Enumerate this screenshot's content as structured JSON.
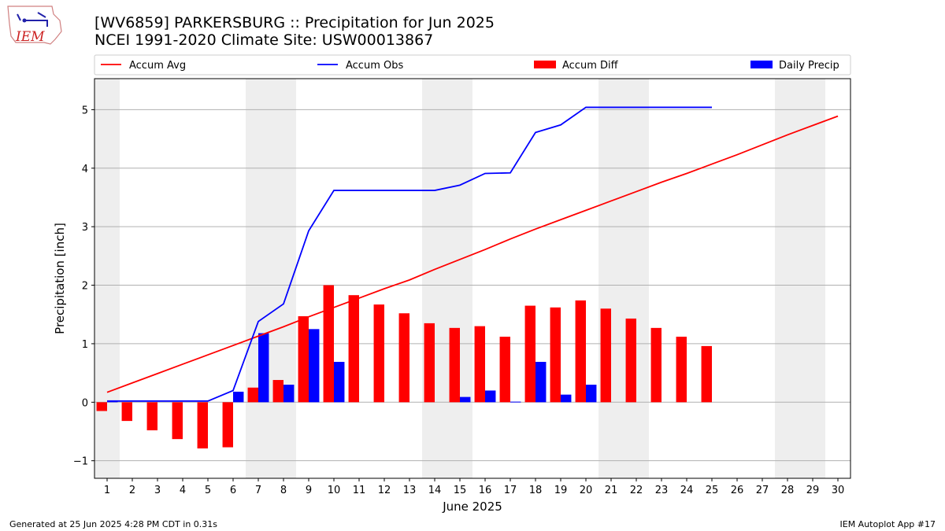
{
  "header": {
    "logo_text": "IEM",
    "title_line1": "[WV6859] PARKERSBURG :: Precipitation for Jun 2025",
    "title_line2": "NCEI 1991-2020 Climate Site: USW00013867"
  },
  "footer": {
    "left": "Generated at 25 Jun 2025 4:28 PM CDT in 0.31s",
    "right": "IEM Autoplot App #17"
  },
  "chart_data": {
    "type": "bar",
    "xlabel": "June 2025",
    "ylabel": "Precipitation [inch]",
    "xlim": [
      0.5,
      30.5
    ],
    "ylim": [
      -1.3,
      5.53
    ],
    "yticks": [
      -1,
      0,
      1,
      2,
      3,
      4,
      5
    ],
    "grid": true,
    "legend_position": "top",
    "weekend_shading": [
      [
        0.5,
        1.5
      ],
      [
        6.5,
        8.5
      ],
      [
        13.5,
        15.5
      ],
      [
        20.5,
        22.5
      ],
      [
        27.5,
        29.5
      ]
    ],
    "days": [
      1,
      2,
      3,
      4,
      5,
      6,
      7,
      8,
      9,
      10,
      11,
      12,
      13,
      14,
      15,
      16,
      17,
      18,
      19,
      20,
      21,
      22,
      23,
      24,
      25,
      26,
      27,
      28,
      29,
      30
    ],
    "series": [
      {
        "name": "Accum Avg",
        "kind": "line",
        "color": "#ff0000",
        "values": [
          0.17,
          0.33,
          0.49,
          0.65,
          0.81,
          0.97,
          1.13,
          1.29,
          1.46,
          1.62,
          1.78,
          1.94,
          2.09,
          2.27,
          2.44,
          2.61,
          2.79,
          2.96,
          3.12,
          3.28,
          3.44,
          3.6,
          3.76,
          3.91,
          4.07,
          4.23,
          4.4,
          4.57,
          4.73,
          4.89
        ]
      },
      {
        "name": "Accum Obs",
        "kind": "line",
        "color": "#0000ff",
        "values": [
          0.02,
          0.02,
          0.02,
          0.02,
          0.02,
          0.2,
          1.38,
          1.68,
          2.93,
          3.62,
          3.62,
          3.62,
          3.62,
          3.62,
          3.71,
          3.91,
          3.92,
          4.61,
          4.74,
          5.04,
          5.04,
          5.04,
          5.04,
          5.04,
          5.04
        ]
      },
      {
        "name": "Accum Diff",
        "kind": "bar",
        "color": "#ff0000",
        "values": [
          -0.15,
          -0.32,
          -0.48,
          -0.63,
          -0.79,
          -0.77,
          0.25,
          0.38,
          1.47,
          2.0,
          1.83,
          1.67,
          1.52,
          1.35,
          1.27,
          1.3,
          1.12,
          1.65,
          1.62,
          1.74,
          1.6,
          1.43,
          1.27,
          1.12,
          0.96
        ]
      },
      {
        "name": "Daily Precip",
        "kind": "bar",
        "color": "#0000ff",
        "values": [
          0.02,
          0,
          0,
          0,
          0,
          0.18,
          1.18,
          0.3,
          1.25,
          0.69,
          0,
          0,
          0,
          0,
          0.09,
          0.2,
          0.01,
          0.69,
          0.13,
          0.3,
          0,
          0,
          0,
          0,
          0
        ]
      }
    ]
  }
}
